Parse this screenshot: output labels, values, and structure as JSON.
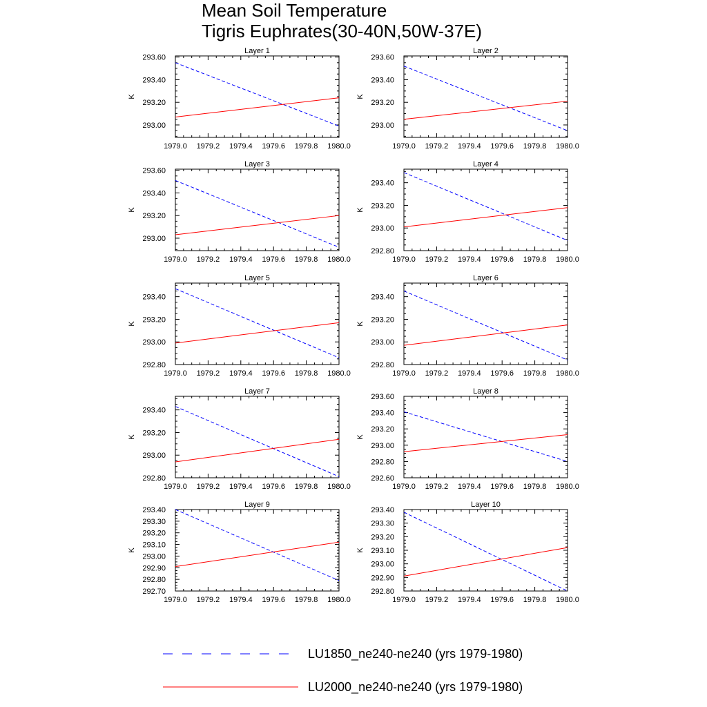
{
  "title_lines": [
    "Mean Soil Temperature",
    "Tigris Euphrates(30-40N,50W-37E)"
  ],
  "colors": {
    "lu1850": "#0000ff",
    "lu2000": "#ff0000",
    "axis": "#000000"
  },
  "legend": [
    {
      "name": "LU1850_ne240-ne240 (yrs 1979-1980)",
      "color": "#0000ff",
      "dashed": true
    },
    {
      "name": "LU2000_ne240-ne240 (yrs 1979-1980)",
      "color": "#ff0000",
      "dashed": false
    }
  ],
  "chart_data": [
    {
      "type": "line",
      "title": "Layer 1",
      "xlabel": "",
      "ylabel": "K",
      "xlim": [
        1979.0,
        1980.0
      ],
      "xticks": [
        1979.0,
        1979.2,
        1979.4,
        1979.6,
        1979.8,
        1980.0
      ],
      "ylim": [
        292.89,
        293.61
      ],
      "yticks": [
        293.0,
        293.2,
        293.4,
        293.6
      ],
      "series": [
        {
          "name": "LU1850_ne240-ne240 (yrs 1979-1980)",
          "x": [
            1979.0,
            1980.0
          ],
          "y": [
            293.55,
            292.99
          ]
        },
        {
          "name": "LU2000_ne240-ne240 (yrs 1979-1980)",
          "x": [
            1979.0,
            1980.0
          ],
          "y": [
            293.07,
            293.24
          ]
        }
      ]
    },
    {
      "type": "line",
      "title": "Layer 2",
      "xlabel": "",
      "ylabel": "K",
      "xlim": [
        1979.0,
        1980.0
      ],
      "xticks": [
        1979.0,
        1979.2,
        1979.4,
        1979.6,
        1979.8,
        1980.0
      ],
      "ylim": [
        292.89,
        293.61
      ],
      "yticks": [
        293.0,
        293.2,
        293.4,
        293.6
      ],
      "series": [
        {
          "name": "LU1850_ne240-ne240 (yrs 1979-1980)",
          "x": [
            1979.0,
            1980.0
          ],
          "y": [
            293.52,
            292.95
          ]
        },
        {
          "name": "LU2000_ne240-ne240 (yrs 1979-1980)",
          "x": [
            1979.0,
            1980.0
          ],
          "y": [
            293.05,
            293.21
          ]
        }
      ]
    },
    {
      "type": "line",
      "title": "Layer 3",
      "xlabel": "",
      "ylabel": "K",
      "xlim": [
        1979.0,
        1980.0
      ],
      "xticks": [
        1979.0,
        1979.2,
        1979.4,
        1979.6,
        1979.8,
        1980.0
      ],
      "ylim": [
        292.89,
        293.61
      ],
      "yticks": [
        293.0,
        293.2,
        293.4,
        293.6
      ],
      "series": [
        {
          "name": "LU1850_ne240-ne240 (yrs 1979-1980)",
          "x": [
            1979.0,
            1980.0
          ],
          "y": [
            293.51,
            292.92
          ]
        },
        {
          "name": "LU2000_ne240-ne240 (yrs 1979-1980)",
          "x": [
            1979.0,
            1980.0
          ],
          "y": [
            293.03,
            293.2
          ]
        }
      ]
    },
    {
      "type": "line",
      "title": "Layer 4",
      "xlabel": "",
      "ylabel": "K",
      "xlim": [
        1979.0,
        1980.0
      ],
      "xticks": [
        1979.0,
        1979.2,
        1979.4,
        1979.6,
        1979.8,
        1980.0
      ],
      "ylim": [
        292.8,
        293.52
      ],
      "yticks": [
        292.8,
        293.0,
        293.2,
        293.4
      ],
      "series": [
        {
          "name": "LU1850_ne240-ne240 (yrs 1979-1980)",
          "x": [
            1979.0,
            1980.0
          ],
          "y": [
            293.49,
            292.89
          ]
        },
        {
          "name": "LU2000_ne240-ne240 (yrs 1979-1980)",
          "x": [
            1979.0,
            1980.0
          ],
          "y": [
            293.01,
            293.18
          ]
        }
      ]
    },
    {
      "type": "line",
      "title": "Layer 5",
      "xlabel": "",
      "ylabel": "K",
      "xlim": [
        1979.0,
        1980.0
      ],
      "xticks": [
        1979.0,
        1979.2,
        1979.4,
        1979.6,
        1979.8,
        1980.0
      ],
      "ylim": [
        292.8,
        293.52
      ],
      "yticks": [
        292.8,
        293.0,
        293.2,
        293.4
      ],
      "series": [
        {
          "name": "LU1850_ne240-ne240 (yrs 1979-1980)",
          "x": [
            1979.0,
            1980.0
          ],
          "y": [
            293.47,
            292.86
          ]
        },
        {
          "name": "LU2000_ne240-ne240 (yrs 1979-1980)",
          "x": [
            1979.0,
            1980.0
          ],
          "y": [
            292.99,
            293.17
          ]
        }
      ]
    },
    {
      "type": "line",
      "title": "Layer 6",
      "xlabel": "",
      "ylabel": "K",
      "xlim": [
        1979.0,
        1980.0
      ],
      "xticks": [
        1979.0,
        1979.2,
        1979.4,
        1979.6,
        1979.8,
        1980.0
      ],
      "ylim": [
        292.8,
        293.52
      ],
      "yticks": [
        292.8,
        293.0,
        293.2,
        293.4
      ],
      "series": [
        {
          "name": "LU1850_ne240-ne240 (yrs 1979-1980)",
          "x": [
            1979.0,
            1980.0
          ],
          "y": [
            293.45,
            292.84
          ]
        },
        {
          "name": "LU2000_ne240-ne240 (yrs 1979-1980)",
          "x": [
            1979.0,
            1980.0
          ],
          "y": [
            292.97,
            293.15
          ]
        }
      ]
    },
    {
      "type": "line",
      "title": "Layer 7",
      "xlabel": "",
      "ylabel": "K",
      "xlim": [
        1979.0,
        1980.0
      ],
      "xticks": [
        1979.0,
        1979.2,
        1979.4,
        1979.6,
        1979.8,
        1980.0
      ],
      "ylim": [
        292.8,
        293.52
      ],
      "yticks": [
        292.8,
        293.0,
        293.2,
        293.4
      ],
      "series": [
        {
          "name": "LU1850_ne240-ne240 (yrs 1979-1980)",
          "x": [
            1979.0,
            1980.0
          ],
          "y": [
            293.43,
            292.81
          ]
        },
        {
          "name": "LU2000_ne240-ne240 (yrs 1979-1980)",
          "x": [
            1979.0,
            1980.0
          ],
          "y": [
            292.94,
            293.14
          ]
        }
      ]
    },
    {
      "type": "line",
      "title": "Layer 8",
      "xlabel": "",
      "ylabel": "K",
      "xlim": [
        1979.0,
        1980.0
      ],
      "xticks": [
        1979.0,
        1979.2,
        1979.4,
        1979.6,
        1979.8,
        1980.0
      ],
      "ylim": [
        292.6,
        293.6
      ],
      "yticks": [
        292.6,
        292.8,
        293.0,
        293.2,
        293.4,
        293.6
      ],
      "series": [
        {
          "name": "LU1850_ne240-ne240 (yrs 1979-1980)",
          "x": [
            1979.0,
            1980.0
          ],
          "y": [
            293.41,
            292.8
          ]
        },
        {
          "name": "LU2000_ne240-ne240 (yrs 1979-1980)",
          "x": [
            1979.0,
            1980.0
          ],
          "y": [
            292.92,
            293.13
          ]
        }
      ]
    },
    {
      "type": "line",
      "title": "Layer 9",
      "xlabel": "",
      "ylabel": "K",
      "xlim": [
        1979.0,
        1980.0
      ],
      "xticks": [
        1979.0,
        1979.2,
        1979.4,
        1979.6,
        1979.8,
        1980.0
      ],
      "ylim": [
        292.7,
        293.4
      ],
      "yticks": [
        292.7,
        292.8,
        292.9,
        293.0,
        293.1,
        293.2,
        293.3,
        293.4
      ],
      "series": [
        {
          "name": "LU1850_ne240-ne240 (yrs 1979-1980)",
          "x": [
            1979.0,
            1980.0
          ],
          "y": [
            293.4,
            292.79
          ]
        },
        {
          "name": "LU2000_ne240-ne240 (yrs 1979-1980)",
          "x": [
            1979.0,
            1980.0
          ],
          "y": [
            292.91,
            293.12
          ]
        }
      ]
    },
    {
      "type": "line",
      "title": "Layer 10",
      "xlabel": "",
      "ylabel": "K",
      "xlim": [
        1979.0,
        1980.0
      ],
      "xticks": [
        1979.0,
        1979.2,
        1979.4,
        1979.6,
        1979.8,
        1980.0
      ],
      "ylim": [
        292.8,
        293.4
      ],
      "yticks": [
        292.8,
        292.9,
        293.0,
        293.1,
        293.2,
        293.3,
        293.4
      ],
      "series": [
        {
          "name": "LU1850_ne240-ne240 (yrs 1979-1980)",
          "x": [
            1979.0,
            1980.0
          ],
          "y": [
            293.38,
            292.8
          ]
        },
        {
          "name": "LU2000_ne240-ne240 (yrs 1979-1980)",
          "x": [
            1979.0,
            1980.0
          ],
          "y": [
            292.91,
            293.12
          ]
        }
      ]
    }
  ]
}
